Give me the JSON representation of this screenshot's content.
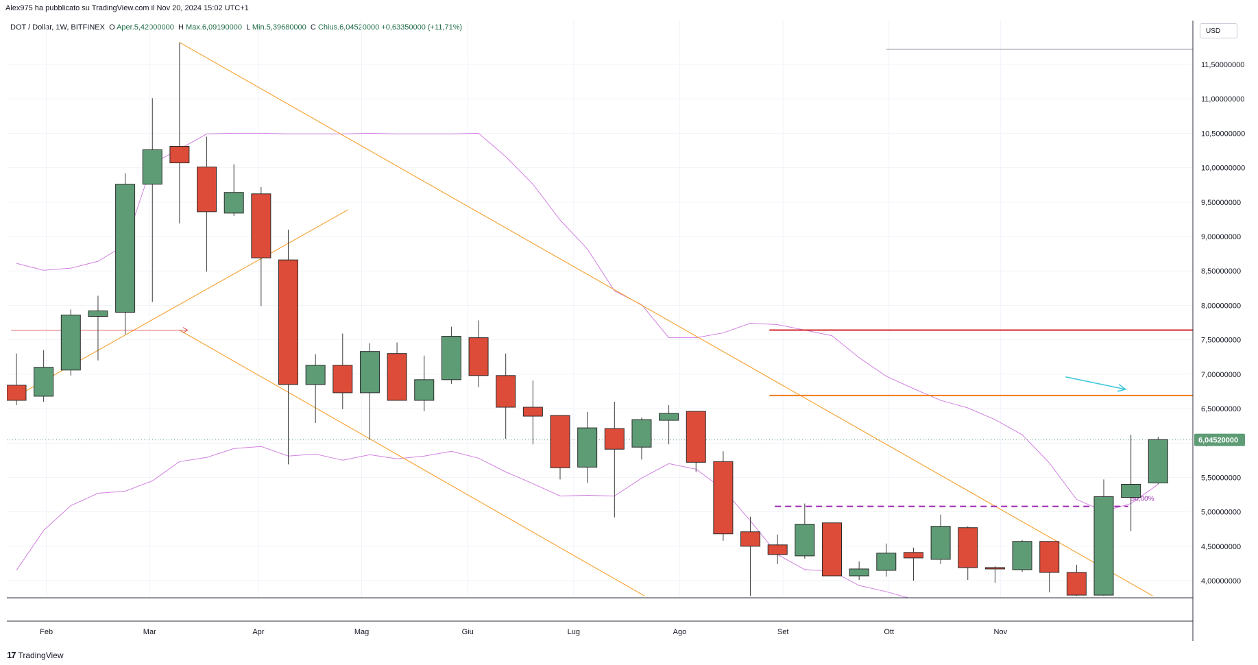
{
  "header": {
    "published": "Alex975 ha pubblicato su TradingView.com il Nov 20, 2024 15:02 UTC+1"
  },
  "legend": {
    "symbol": "DOT / Dollar, 1W, BITFINEX",
    "open_label": "O",
    "open": "Aper.5,42000000",
    "high_label": "H",
    "high": "Max.6,09190000",
    "low_label": "L",
    "low": "Min.5,39680000",
    "close_label": "C",
    "close": "Chius.6,04520000",
    "change": "+0,63350000 (+11,71%)"
  },
  "currency_button": "USD",
  "footer": {
    "brand": "TradingView"
  },
  "colors": {
    "up": "#5e9c76",
    "down": "#dd4b39",
    "bollinger": "#d17fe0",
    "trendline": "#f6a53a",
    "resistance_red": "#d1262b",
    "resistance_orange": "#f07c1a",
    "arrow": "#3fc7dc",
    "dashed": "#9c27b0",
    "price_tag": "#5e9c76"
  },
  "chart_data": {
    "type": "candlestick",
    "x_labels": [
      "Feb",
      "Mar",
      "Apr",
      "Mag",
      "Giu",
      "Lug",
      "Ago",
      "Set",
      "Ott",
      "Nov"
    ],
    "y_ticks": [
      "4,00000000",
      "4,50000000",
      "5,00000000",
      "5,50000000",
      "6,00000000",
      "6,50000000",
      "7,00000000",
      "7,50000000",
      "8,00000000",
      "8,50000000",
      "9,00000000",
      "9,50000000",
      "10,00000000",
      "10,50000000",
      "11,00000000",
      "11,50000000"
    ],
    "y_tick_values": [
      4.0,
      4.5,
      5.0,
      5.5,
      6.0,
      6.5,
      7.0,
      7.5,
      8.0,
      8.5,
      9.0,
      9.5,
      10.0,
      10.5,
      11.0,
      11.5
    ],
    "ylim": [
      3.78,
      11.95
    ],
    "last_price_label": "6,04520000",
    "last_price": 6.0452,
    "fib_label": "50,00%",
    "candles": [
      {
        "o": 6.84,
        "h": 7.3,
        "l": 6.55,
        "c": 6.62
      },
      {
        "o": 6.68,
        "h": 7.35,
        "l": 6.6,
        "c": 7.1
      },
      {
        "o": 7.06,
        "h": 7.94,
        "l": 6.98,
        "c": 7.86
      },
      {
        "o": 7.84,
        "h": 8.14,
        "l": 7.2,
        "c": 7.92
      },
      {
        "o": 7.9,
        "h": 9.92,
        "l": 7.58,
        "c": 9.76
      },
      {
        "o": 9.76,
        "h": 11.01,
        "l": 8.05,
        "c": 10.26
      },
      {
        "o": 10.31,
        "h": 11.82,
        "l": 9.19,
        "c": 10.07
      },
      {
        "o": 10.01,
        "h": 10.45,
        "l": 8.49,
        "c": 9.36
      },
      {
        "o": 9.34,
        "h": 10.05,
        "l": 9.3,
        "c": 9.64
      },
      {
        "o": 9.62,
        "h": 9.72,
        "l": 7.99,
        "c": 8.69
      },
      {
        "o": 8.66,
        "h": 9.1,
        "l": 5.69,
        "c": 6.85
      },
      {
        "o": 6.85,
        "h": 7.29,
        "l": 6.29,
        "c": 7.13
      },
      {
        "o": 7.13,
        "h": 7.59,
        "l": 6.49,
        "c": 6.73
      },
      {
        "o": 6.73,
        "h": 7.45,
        "l": 6.05,
        "c": 7.33
      },
      {
        "o": 7.3,
        "h": 7.46,
        "l": 6.62,
        "c": 6.62
      },
      {
        "o": 6.62,
        "h": 7.27,
        "l": 6.46,
        "c": 6.92
      },
      {
        "o": 6.92,
        "h": 7.69,
        "l": 6.86,
        "c": 7.55
      },
      {
        "o": 7.53,
        "h": 7.78,
        "l": 6.81,
        "c": 6.98
      },
      {
        "o": 6.98,
        "h": 7.3,
        "l": 6.06,
        "c": 6.52
      },
      {
        "o": 6.52,
        "h": 6.91,
        "l": 5.98,
        "c": 6.39
      },
      {
        "o": 6.4,
        "h": 6.4,
        "l": 5.47,
        "c": 5.64
      },
      {
        "o": 5.65,
        "h": 6.45,
        "l": 5.42,
        "c": 6.22
      },
      {
        "o": 6.21,
        "h": 6.6,
        "l": 4.92,
        "c": 5.91
      },
      {
        "o": 5.94,
        "h": 6.37,
        "l": 5.76,
        "c": 6.34
      },
      {
        "o": 6.33,
        "h": 6.55,
        "l": 5.98,
        "c": 6.43
      },
      {
        "o": 6.46,
        "h": 6.46,
        "l": 5.58,
        "c": 5.72
      },
      {
        "o": 5.73,
        "h": 5.88,
        "l": 4.58,
        "c": 4.68
      },
      {
        "o": 4.71,
        "h": 4.93,
        "l": 3.78,
        "c": 4.5
      },
      {
        "o": 4.52,
        "h": 4.67,
        "l": 4.24,
        "c": 4.38
      },
      {
        "o": 4.36,
        "h": 5.12,
        "l": 4.32,
        "c": 4.82
      },
      {
        "o": 4.84,
        "h": 4.84,
        "l": 4.07,
        "c": 4.07
      },
      {
        "o": 4.07,
        "h": 4.28,
        "l": 4.01,
        "c": 4.17
      },
      {
        "o": 4.15,
        "h": 4.54,
        "l": 4.06,
        "c": 4.4
      },
      {
        "o": 4.41,
        "h": 4.48,
        "l": 4.0,
        "c": 4.33
      },
      {
        "o": 4.31,
        "h": 4.96,
        "l": 4.24,
        "c": 4.79
      },
      {
        "o": 4.77,
        "h": 4.79,
        "l": 4.01,
        "c": 4.19
      },
      {
        "o": 4.19,
        "h": 4.21,
        "l": 3.97,
        "c": 4.17
      },
      {
        "o": 4.16,
        "h": 4.59,
        "l": 4.13,
        "c": 4.57
      },
      {
        "o": 4.57,
        "h": 4.57,
        "l": 3.83,
        "c": 4.12
      },
      {
        "o": 4.12,
        "h": 4.23,
        "l": 3.78,
        "c": 3.79
      },
      {
        "o": 3.79,
        "h": 5.47,
        "l": 3.78,
        "c": 5.22
      },
      {
        "o": 5.21,
        "h": 6.12,
        "l": 4.72,
        "c": 5.4
      },
      {
        "o": 5.42,
        "h": 6.09,
        "l": 5.4,
        "c": 6.05
      }
    ],
    "bollinger_upper": [
      8.61,
      8.51,
      8.54,
      8.64,
      8.88,
      10.06,
      10.27,
      10.49,
      10.5,
      10.5,
      10.49,
      10.49,
      10.49,
      10.5,
      10.49,
      10.49,
      10.49,
      10.5,
      10.16,
      9.76,
      9.24,
      8.82,
      8.21,
      8.01,
      7.53,
      7.53,
      7.6,
      7.74,
      7.72,
      7.64,
      7.56,
      7.24,
      6.97,
      6.79,
      6.62,
      6.51,
      6.34,
      6.12,
      5.71,
      5.18,
      5.01,
      5.12,
      5.4
    ],
    "bollinger_lower": [
      4.15,
      4.73,
      5.09,
      5.27,
      5.3,
      5.45,
      5.73,
      5.79,
      5.92,
      5.95,
      5.81,
      5.84,
      5.75,
      5.83,
      5.77,
      5.81,
      5.88,
      5.78,
      5.58,
      5.41,
      5.23,
      5.24,
      5.23,
      5.49,
      5.7,
      5.62,
      5.33,
      4.87,
      4.38,
      4.16,
      4.14,
      3.93,
      3.84,
      3.73,
      3.63,
      3.55,
      3.48,
      3.43,
      3.4,
      3.37,
      3.37,
      3.5,
      3.62
    ],
    "trendlines": [
      {
        "kind": "trendline",
        "from": [
          0,
          6.68
        ],
        "to": [
          12.2,
          9.39
        ]
      },
      {
        "kind": "trendline",
        "from": [
          6.0,
          11.82
        ],
        "to": [
          41.8,
          3.78
        ]
      },
      {
        "kind": "trendline",
        "from": [
          6.0,
          7.64
        ],
        "to": [
          23.1,
          3.78
        ]
      }
    ],
    "horizontal_levels": [
      {
        "kind": "gray",
        "value": 11.72,
        "from": 32.0
      },
      {
        "kind": "resistance_red",
        "value": 7.64,
        "from": 27.7
      },
      {
        "kind": "resistance_orange",
        "value": 6.69,
        "from": 27.7
      },
      {
        "kind": "fib_dashed",
        "value": 5.08,
        "from": 27.9,
        "to": 40.9
      }
    ],
    "arrow_markers": [
      {
        "kind": "red_arrow",
        "y": 7.64,
        "from": -0.2,
        "to": 6.3
      },
      {
        "kind": "cyan_arrow",
        "from": [
          38.6,
          6.96
        ],
        "to": [
          40.8,
          6.78
        ]
      }
    ]
  }
}
